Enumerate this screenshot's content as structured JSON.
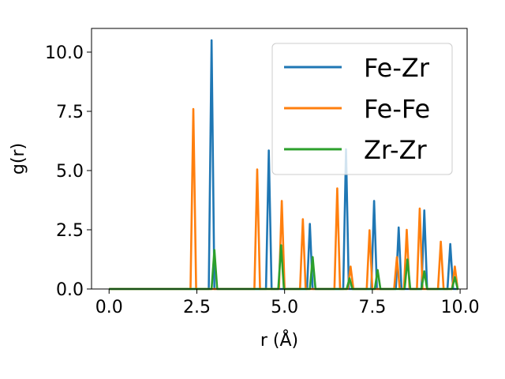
{
  "chart_data": {
    "type": "line",
    "title": "",
    "xlabel": "r (Å)",
    "ylabel": "g(r)",
    "xlim": [
      -0.5,
      10.2
    ],
    "ylim": [
      0,
      11
    ],
    "xticks": [
      0.0,
      2.5,
      5.0,
      7.5,
      10.0
    ],
    "xtick_labels": [
      "0.0",
      "2.5",
      "5.0",
      "7.5",
      "10.0"
    ],
    "yticks": [
      0.0,
      2.5,
      5.0,
      7.5,
      10.0
    ],
    "ytick_labels": [
      "0.0",
      "2.5",
      "5.0",
      "7.5",
      "10.0"
    ],
    "grid": false,
    "legend_position": "top-right",
    "series": [
      {
        "name": "Fe-Zr",
        "color": "#1f77b4",
        "peaks": [
          [
            2.92,
            10.5
          ],
          [
            4.55,
            5.85
          ],
          [
            5.72,
            2.75
          ],
          [
            6.75,
            5.9
          ],
          [
            7.55,
            3.72
          ],
          [
            8.25,
            2.6
          ],
          [
            8.98,
            3.32
          ],
          [
            9.72,
            1.9
          ]
        ]
      },
      {
        "name": "Fe-Fe",
        "color": "#ff7f0e",
        "peaks": [
          [
            2.4,
            7.6
          ],
          [
            4.22,
            5.05
          ],
          [
            4.92,
            3.72
          ],
          [
            5.52,
            2.95
          ],
          [
            6.5,
            4.25
          ],
          [
            6.88,
            0.95
          ],
          [
            7.42,
            2.48
          ],
          [
            8.2,
            1.35
          ],
          [
            8.48,
            2.5
          ],
          [
            8.85,
            3.4
          ],
          [
            9.45,
            2.0
          ],
          [
            9.85,
            0.95
          ]
        ]
      },
      {
        "name": "Zr-Zr",
        "color": "#2ca02c",
        "peaks": [
          [
            3.0,
            1.65
          ],
          [
            4.9,
            1.85
          ],
          [
            5.8,
            1.35
          ],
          [
            6.85,
            0.45
          ],
          [
            7.65,
            0.8
          ],
          [
            8.5,
            1.25
          ],
          [
            8.98,
            0.75
          ],
          [
            9.85,
            0.5
          ]
        ]
      }
    ]
  }
}
